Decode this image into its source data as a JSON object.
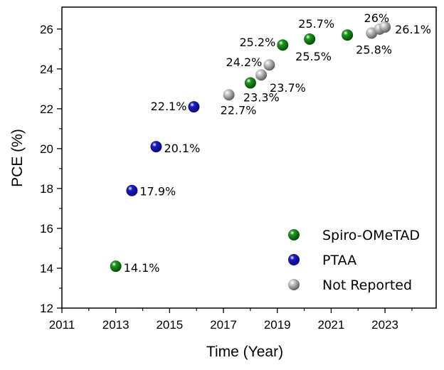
{
  "chart_data": {
    "type": "scatter",
    "title": "",
    "xlabel": "Time (Year)",
    "ylabel": "PCE (%)",
    "xlim": [
      2011,
      2024.9
    ],
    "ylim": [
      12,
      27.1
    ],
    "xticks": [
      2011,
      2013,
      2015,
      2017,
      2019,
      2021,
      2023
    ],
    "yticks": [
      12,
      14,
      16,
      18,
      20,
      22,
      24,
      26
    ],
    "grid": false,
    "legend_position": "bottom-right",
    "series": [
      {
        "name": "Spiro-OMeTAD",
        "color": "#1a9a1a",
        "points": [
          {
            "x": 2013.0,
            "y": 14.1,
            "label": "14.1%"
          },
          {
            "x": 2018.0,
            "y": 23.3,
            "label": "23.3%"
          },
          {
            "x": 2019.2,
            "y": 25.2,
            "label": "25.2%"
          },
          {
            "x": 2020.2,
            "y": 25.5,
            "label": "25.5%"
          },
          {
            "x": 2021.6,
            "y": 25.7,
            "label": "25.7%"
          }
        ]
      },
      {
        "name": "PTAA",
        "color": "#1a1ad0",
        "points": [
          {
            "x": 2013.6,
            "y": 17.9,
            "label": "17.9%"
          },
          {
            "x": 2014.5,
            "y": 20.1,
            "label": "20.1%"
          },
          {
            "x": 2015.9,
            "y": 22.1,
            "label": "22.1%"
          }
        ]
      },
      {
        "name": "Not Reported",
        "color": "#cccccc",
        "points": [
          {
            "x": 2017.2,
            "y": 22.7,
            "label": "22.7%"
          },
          {
            "x": 2018.7,
            "y": 24.2,
            "label": "24.2%"
          },
          {
            "x": 2018.4,
            "y": 23.7,
            "label": "23.7%"
          },
          {
            "x": 2022.5,
            "y": 25.8,
            "label": "25.8%"
          },
          {
            "x": 2022.8,
            "y": 26.0,
            "label": "26%"
          },
          {
            "x": 2023.0,
            "y": 26.1,
            "label": "26.1%"
          }
        ]
      }
    ]
  }
}
